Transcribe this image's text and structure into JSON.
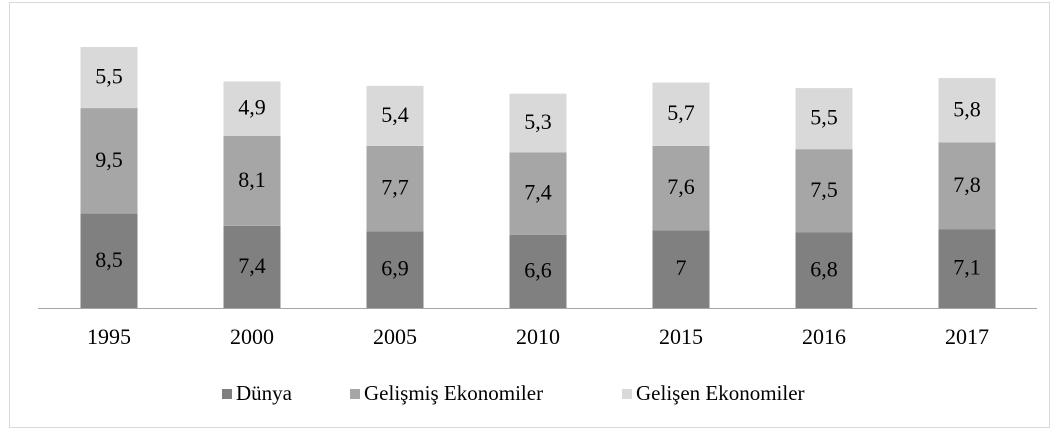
{
  "chart_data": {
    "type": "stacked_bar",
    "categories": [
      "1995",
      "2000",
      "2005",
      "2010",
      "2015",
      "2016",
      "2017"
    ],
    "series": [
      {
        "name": "Dünya",
        "color": "#808080",
        "values": [
          8.5,
          7.4,
          6.9,
          6.6,
          7,
          6.8,
          7.1
        ],
        "value_labels": [
          "8,5",
          "7,4",
          "6,9",
          "6,6",
          "7",
          "6,8",
          "7,1"
        ]
      },
      {
        "name": "Gelişmiş Ekonomiler",
        "color": "#a6a6a6",
        "values": [
          9.5,
          8.1,
          7.7,
          7.4,
          7.6,
          7.5,
          7.8
        ],
        "value_labels": [
          "9,5",
          "8,1",
          "7,7",
          "7,4",
          "7,6",
          "7,5",
          "7,8"
        ]
      },
      {
        "name": "Gelişen Ekonomiler",
        "color": "#d9d9d9",
        "values": [
          5.5,
          4.9,
          5.4,
          5.3,
          5.7,
          5.5,
          5.8
        ],
        "value_labels": [
          "5,5",
          "4,9",
          "5,4",
          "5,3",
          "5,7",
          "5,5",
          "5,8"
        ]
      }
    ],
    "legend": "bottom"
  }
}
